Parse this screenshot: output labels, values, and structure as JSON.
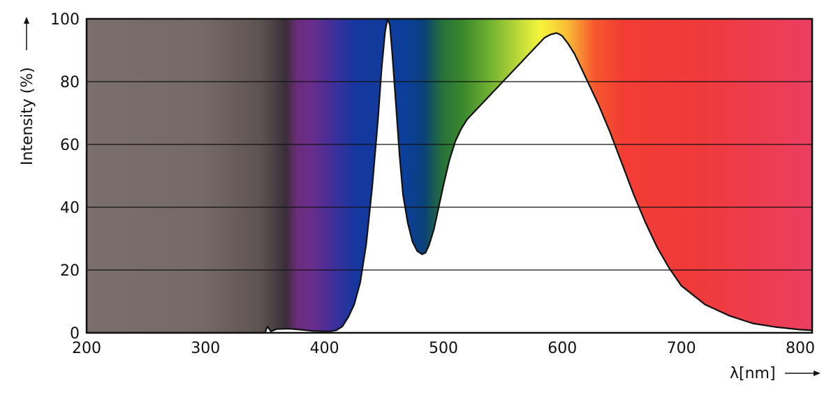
{
  "chart_data": {
    "type": "area",
    "title": "",
    "xlabel": "λ[nm]",
    "ylabel": "Intensity (%)",
    "xlim": [
      200,
      810
    ],
    "ylim": [
      0,
      100
    ],
    "x_ticks": [
      200,
      300,
      400,
      500,
      600,
      700,
      800
    ],
    "y_ticks": [
      0,
      20,
      40,
      60,
      80,
      100
    ],
    "grid": "horizontal",
    "background": "visible spectrum gradient (grey UV → violet → blue → green → yellow → orange → red)",
    "series": [
      {
        "x": [
          200,
          350,
          352,
          355,
          360,
          370,
          380,
          390,
          400,
          405,
          410,
          415,
          420,
          425,
          430,
          435,
          440,
          445,
          448,
          451,
          453,
          455,
          457,
          460,
          463,
          466,
          470,
          474,
          478,
          482,
          485,
          488,
          492,
          496,
          500,
          505,
          510,
          515,
          520,
          530,
          540,
          550,
          560,
          570,
          580,
          585,
          590,
          595,
          598,
          600,
          605,
          610,
          615,
          620,
          625,
          630,
          640,
          650,
          660,
          670,
          680,
          690,
          700,
          720,
          740,
          760,
          780,
          800,
          810
        ],
        "y": [
          0,
          0,
          2,
          0.5,
          1.2,
          1.3,
          1,
          0.6,
          0.5,
          0.5,
          0.8,
          2,
          5,
          9,
          16,
          28,
          46,
          68,
          84,
          96,
          100,
          98,
          89,
          73,
          57,
          44,
          35,
          29,
          26,
          25,
          25.5,
          28,
          33,
          40,
          47,
          55,
          61,
          65,
          68,
          72,
          76,
          80,
          84,
          88,
          92,
          94,
          95,
          95.5,
          95,
          94.5,
          92,
          89,
          85,
          81,
          77,
          73,
          64,
          54,
          44,
          35,
          27,
          20.5,
          15,
          9,
          5.5,
          3,
          1.8,
          1,
          0.8
        ]
      }
    ]
  }
}
